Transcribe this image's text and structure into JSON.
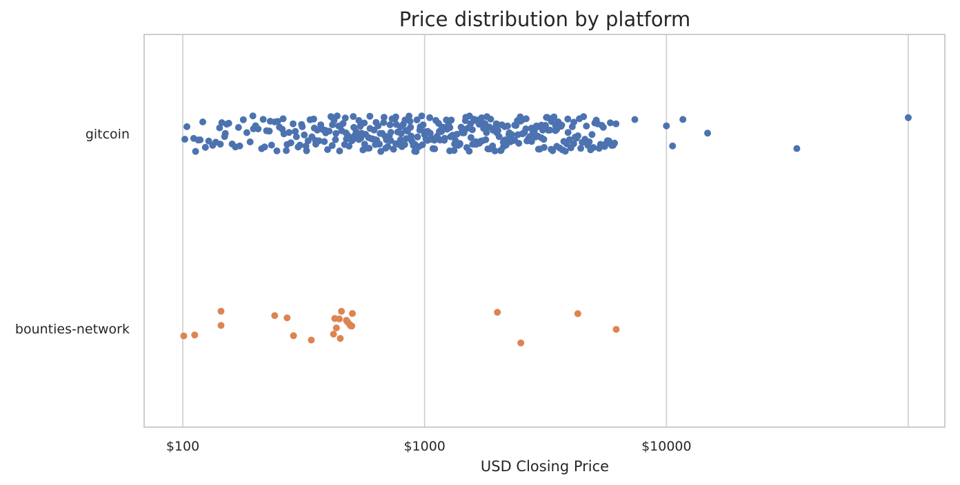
{
  "chart_data": {
    "type": "scatter",
    "title": "Price distribution by platform",
    "xlabel": "USD Closing Price",
    "ylabel": "",
    "x_scale": "log",
    "x_range": [
      70,
      130000
    ],
    "x_ticks": [
      100,
      1000,
      10000
    ],
    "x_tick_labels": [
      "$100",
      "$1000",
      "$10000"
    ],
    "grid": "vertical",
    "categories": [
      "gitcoin",
      "bounties-network"
    ],
    "colors": {
      "gitcoin": "#4c72b0",
      "bounties-network": "#dd8452",
      "grid": "#cccccc",
      "frame": "#cccccc"
    },
    "series": [
      {
        "name": "gitcoin",
        "category": "gitcoin",
        "values": [
          102,
          104,
          111,
          113,
          116,
          118,
          121,
          124,
          128,
          133,
          137,
          142,
          143,
          145,
          149,
          152,
          155,
          160,
          165,
          172,
          178,
          184,
          190,
          196,
          200,
          205,
          212,
          218,
          222,
          228,
          233,
          240,
          247,
          251,
          258,
          262,
          268,
          275,
          280,
          286,
          292,
          300,
          305,
          312,
          318,
          323,
          330,
          336,
          342,
          348,
          354,
          360,
          366,
          372,
          378,
          385,
          391,
          397,
          403,
          410,
          416,
          422,
          428,
          435,
          441,
          448,
          454,
          460,
          467,
          473,
          480,
          487,
          493,
          500,
          507,
          514,
          521,
          528,
          535,
          542,
          549,
          556,
          563,
          570,
          578,
          586,
          594,
          602,
          610,
          618,
          626,
          634,
          642,
          650,
          659,
          668,
          677,
          686,
          695,
          705,
          714,
          724,
          734,
          744,
          754,
          764,
          774,
          785,
          795,
          806,
          817,
          828,
          839,
          850,
          862,
          874,
          886,
          898,
          910,
          922,
          935,
          948,
          960,
          973,
          986,
          1000,
          1013,
          1027,
          1041,
          1055,
          1069,
          1083,
          1098,
          1113,
          1128,
          1143,
          1158,
          1174,
          1190,
          1206,
          1222,
          1238,
          1255,
          1272,
          1289,
          1306,
          1324,
          1342,
          1360,
          1378,
          1397,
          1416,
          1435,
          1454,
          1474,
          1494,
          1514,
          1534,
          1555,
          1576,
          1597,
          1618,
          1640,
          1662,
          1685,
          1708,
          1731,
          1754,
          1778,
          1802,
          1826,
          1851,
          1876,
          1901,
          1927,
          1953,
          1979,
          2006,
          2033,
          2060,
          2088,
          2116,
          2145,
          2174,
          2203,
          2233,
          2263,
          2293,
          2324,
          2356,
          2387,
          2419,
          2452,
          2485,
          2519,
          2553,
          2587,
          2622,
          2657,
          2693,
          2730,
          2767,
          2804,
          2842,
          2880,
          2919,
          2958,
          2998,
          3039,
          3080,
          3121,
          3163,
          3206,
          3249,
          3293,
          3338,
          3383,
          3428,
          3475,
          3522,
          3569,
          3617,
          3666,
          3716,
          3766,
          3817,
          3868,
          3920,
          3973,
          4027,
          4081,
          4136,
          4192,
          4249,
          4306,
          4364,
          4423,
          4483,
          4543,
          4605,
          4667,
          4730,
          4794,
          4859,
          4924,
          4991,
          5058,
          5126,
          5196,
          5266,
          5337,
          5409,
          5482,
          5556,
          5631,
          5707,
          5784,
          5862,
          5941,
          6021,
          6102,
          6185,
          230,
          260,
          310,
          350,
          390,
          430,
          470,
          510,
          545,
          590,
          630,
          680,
          720,
          760,
          800,
          840,
          880,
          930,
          980,
          1030,
          1080,
          1130,
          1180,
          1230,
          1280,
          1330,
          1380,
          1430,
          1480,
          1530,
          1580,
          1630,
          1680,
          1730,
          1790,
          1850,
          1920,
          1990,
          2070,
          2150,
          2240,
          2330,
          2430,
          2540,
          2650,
          2770,
          2900,
          3040,
          3190,
          3350,
          3520,
          150,
          170,
          195,
          215,
          245,
          270,
          295,
          325,
          355,
          385,
          415,
          445,
          475,
          505,
          535,
          565,
          595,
          625,
          655,
          690,
          725,
          760,
          795,
          830,
          870,
          910,
          955,
          1000,
          1050,
          1100,
          1150,
          1210,
          1270,
          1330,
          1400,
          1470,
          1550,
          1630,
          1720,
          1810,
          1910,
          2010,
          2120,
          2240,
          2360,
          2490,
          2630,
          2780,
          2940,
          3110,
          3290,
          3480,
          3690,
          3910,
          4140,
          7400,
          10000,
          10600,
          11700,
          14800,
          34600,
          100000
        ]
      },
      {
        "name": "bounties-network",
        "category": "bounties-network",
        "values": [
          101,
          112,
          144,
          144,
          240,
          270,
          287,
          340,
          420,
          425,
          432,
          444,
          448,
          453,
          475,
          480,
          490,
          495,
          500,
          503,
          2000,
          2500,
          4300,
          6200
        ]
      }
    ]
  }
}
